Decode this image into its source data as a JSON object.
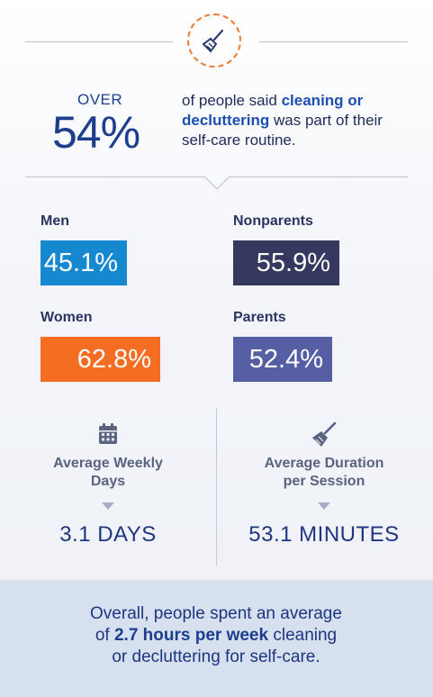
{
  "header": {
    "icon": "broom-icon",
    "accent_color": "#f07a2d"
  },
  "stat": {
    "over": "OVER",
    "percent": "54%",
    "text_before": "of people said ",
    "text_bold": "cleaning or decluttering",
    "text_after": " was part of their self-care routine."
  },
  "demographics": [
    {
      "label": "Men",
      "value": "45.1%",
      "color": "#1688cf"
    },
    {
      "label": "Nonparents",
      "value": "55.9%",
      "color": "#35395f"
    },
    {
      "label": "Women",
      "value": "62.8%",
      "color": "#f46d23"
    },
    {
      "label": "Parents",
      "value": "52.4%",
      "color": "#565fa3"
    }
  ],
  "weekly": {
    "icon": "calendar-icon",
    "title_line1": "Average Weekly",
    "title_line2": "Days",
    "value": "3.1 DAYS"
  },
  "duration": {
    "icon": "broom-icon",
    "title_line1": "Average Duration",
    "title_line2": "per Session",
    "value": "53.1 MINUTES"
  },
  "footer": {
    "line1": "Overall, people spent an average",
    "line2_before": "of ",
    "line2_bold": "2.7 hours per week",
    "line2_after": " cleaning",
    "line3": "or decluttering for self-care."
  }
}
